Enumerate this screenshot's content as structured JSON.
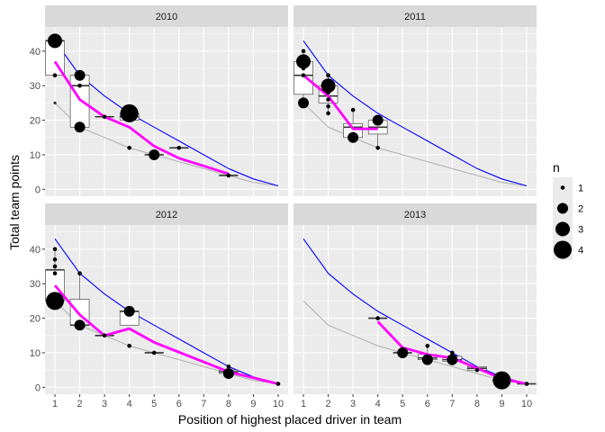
{
  "chart_data": {
    "type": "scatter",
    "xlabel": "Position of highest placed driver in team",
    "ylabel": "Total team points",
    "xlim": [
      0.6,
      10.4
    ],
    "ylim": [
      -2,
      47
    ],
    "x_ticks": [
      1,
      2,
      3,
      4,
      5,
      6,
      7,
      8,
      9,
      10
    ],
    "y_ticks": [
      0,
      10,
      20,
      30,
      40
    ],
    "legend": {
      "title": "n",
      "placement": "right",
      "entries": [
        {
          "label": "1",
          "n": 1
        },
        {
          "label": "2",
          "n": 2
        },
        {
          "label": "3",
          "n": 3
        },
        {
          "label": "4",
          "n": 4
        }
      ]
    },
    "colors": {
      "panel_bg": "#ebebeb",
      "grid": "#ffffff",
      "strip_bg": "#d9d9d9",
      "max_points_line": "#0000ff",
      "min_points_line": "#b3b3b3",
      "mean_line": "#ff00ff",
      "points": "#000000"
    },
    "max_points_line": [
      [
        1,
        43
      ],
      [
        2,
        33
      ],
      [
        3,
        27
      ],
      [
        4,
        22
      ],
      [
        5,
        18
      ],
      [
        6,
        14
      ],
      [
        7,
        10
      ],
      [
        8,
        6
      ],
      [
        9,
        3
      ],
      [
        10,
        1
      ]
    ],
    "min_points_line": [
      [
        1,
        25
      ],
      [
        2,
        18
      ],
      [
        3,
        15
      ],
      [
        4,
        12
      ],
      [
        5,
        10
      ],
      [
        6,
        8
      ],
      [
        7,
        6
      ],
      [
        8,
        4
      ],
      [
        9,
        2
      ],
      [
        10,
        1
      ]
    ],
    "panels": [
      {
        "label": "2010",
        "boxes": [
          {
            "x": 1,
            "lower": 33,
            "q1": 33,
            "median": 43,
            "q3": 43,
            "upper": 43
          },
          {
            "x": 2,
            "lower": 18,
            "q1": 18,
            "median": 30,
            "q3": 33,
            "upper": 33
          },
          {
            "x": 3,
            "lower": 21,
            "q1": 21,
            "median": 21,
            "q3": 21,
            "upper": 21
          },
          {
            "x": 4,
            "lower": 20,
            "q1": 20,
            "median": 21,
            "q3": 22,
            "upper": 22
          },
          {
            "x": 5,
            "lower": 10,
            "q1": 10,
            "median": 10,
            "q3": 10,
            "upper": 10
          },
          {
            "x": 6,
            "lower": 12,
            "q1": 12,
            "median": 12,
            "q3": 12,
            "upper": 12
          },
          {
            "x": 8,
            "lower": 4,
            "q1": 4,
            "median": 4,
            "q3": 4,
            "upper": 4
          }
        ],
        "outliers": [
          [
            1,
            25
          ],
          [
            4,
            12
          ]
        ],
        "points": [
          {
            "x": 1,
            "y": 43,
            "n": 3
          },
          {
            "x": 1,
            "y": 33,
            "n": 1
          },
          {
            "x": 2,
            "y": 33,
            "n": 2
          },
          {
            "x": 2,
            "y": 30,
            "n": 1
          },
          {
            "x": 2,
            "y": 18,
            "n": 2
          },
          {
            "x": 3,
            "y": 21,
            "n": 1
          },
          {
            "x": 4,
            "y": 22,
            "n": 4
          },
          {
            "x": 4,
            "y": 20,
            "n": 1
          },
          {
            "x": 4,
            "y": 12,
            "n": 1
          },
          {
            "x": 5,
            "y": 10,
            "n": 2
          },
          {
            "x": 6,
            "y": 12,
            "n": 1
          },
          {
            "x": 8,
            "y": 4,
            "n": 1
          }
        ],
        "mean_line": [
          [
            1,
            37
          ],
          [
            2,
            26
          ],
          [
            3,
            21
          ],
          [
            4,
            18
          ],
          [
            5,
            12.5
          ],
          [
            6,
            9
          ],
          [
            8,
            4.5
          ]
        ]
      },
      {
        "label": "2011",
        "boxes": [
          {
            "x": 1,
            "lower": 25,
            "q1": 27.5,
            "median": 33,
            "q3": 37,
            "upper": 40
          },
          {
            "x": 2,
            "lower": 22,
            "q1": 25,
            "median": 27,
            "q3": 30,
            "upper": 33
          },
          {
            "x": 3,
            "lower": 15,
            "q1": 15,
            "median": 18,
            "q3": 19,
            "upper": 23
          },
          {
            "x": 4,
            "lower": 12,
            "q1": 16,
            "median": 18,
            "q3": 20,
            "upper": 20
          }
        ],
        "outliers": [],
        "points": [
          {
            "x": 1,
            "y": 40,
            "n": 1
          },
          {
            "x": 1,
            "y": 37,
            "n": 3
          },
          {
            "x": 1,
            "y": 35,
            "n": 1
          },
          {
            "x": 1,
            "y": 33,
            "n": 1
          },
          {
            "x": 1,
            "y": 25,
            "n": 2
          },
          {
            "x": 2,
            "y": 33,
            "n": 1
          },
          {
            "x": 2,
            "y": 30,
            "n": 3
          },
          {
            "x": 2,
            "y": 28,
            "n": 1
          },
          {
            "x": 2,
            "y": 26,
            "n": 1
          },
          {
            "x": 2,
            "y": 24,
            "n": 1
          },
          {
            "x": 2,
            "y": 22,
            "n": 1
          },
          {
            "x": 3,
            "y": 23,
            "n": 1
          },
          {
            "x": 3,
            "y": 15,
            "n": 2
          },
          {
            "x": 4,
            "y": 20,
            "n": 2
          },
          {
            "x": 4,
            "y": 12,
            "n": 1
          }
        ],
        "mean_line": [
          [
            1,
            33
          ],
          [
            2,
            27
          ],
          [
            3,
            17.5
          ],
          [
            4,
            17.5
          ]
        ]
      },
      {
        "label": "2012",
        "boxes": [
          {
            "x": 1,
            "lower": 25,
            "q1": 25,
            "median": 34,
            "q3": 34,
            "upper": 40
          },
          {
            "x": 2,
            "lower": 18,
            "q1": 18,
            "median": 18,
            "q3": 25.5,
            "upper": 33
          },
          {
            "x": 3,
            "lower": 15,
            "q1": 15,
            "median": 15,
            "q3": 15,
            "upper": 15
          },
          {
            "x": 4,
            "lower": 18,
            "q1": 18,
            "median": 22,
            "q3": 22,
            "upper": 22
          },
          {
            "x": 5,
            "lower": 10,
            "q1": 10,
            "median": 10,
            "q3": 10,
            "upper": 10
          },
          {
            "x": 8,
            "lower": 4,
            "q1": 4,
            "median": 4.5,
            "q3": 5,
            "upper": 6
          }
        ],
        "outliers": [
          [
            4,
            12
          ]
        ],
        "points": [
          {
            "x": 1,
            "y": 40,
            "n": 1
          },
          {
            "x": 1,
            "y": 37,
            "n": 1
          },
          {
            "x": 1,
            "y": 35,
            "n": 1
          },
          {
            "x": 1,
            "y": 33,
            "n": 1
          },
          {
            "x": 1,
            "y": 25,
            "n": 4
          },
          {
            "x": 2,
            "y": 33,
            "n": 1
          },
          {
            "x": 2,
            "y": 18,
            "n": 2
          },
          {
            "x": 3,
            "y": 15,
            "n": 1
          },
          {
            "x": 4,
            "y": 22,
            "n": 2
          },
          {
            "x": 4,
            "y": 12,
            "n": 1
          },
          {
            "x": 5,
            "y": 10,
            "n": 1
          },
          {
            "x": 8,
            "y": 6,
            "n": 1
          },
          {
            "x": 8,
            "y": 4,
            "n": 2
          },
          {
            "x": 10,
            "y": 1,
            "n": 1
          }
        ],
        "mean_line": [
          [
            1,
            29.5
          ],
          [
            2,
            21
          ],
          [
            3,
            15
          ],
          [
            4,
            17
          ],
          [
            5,
            13
          ],
          [
            8,
            4.5
          ],
          [
            10,
            1
          ]
        ]
      },
      {
        "label": "2013",
        "boxes": [
          {
            "x": 4,
            "lower": 20,
            "q1": 20,
            "median": 20,
            "q3": 20,
            "upper": 20
          },
          {
            "x": 5,
            "lower": 10,
            "q1": 10,
            "median": 10,
            "q3": 10,
            "upper": 10
          },
          {
            "x": 6,
            "lower": 8,
            "q1": 8,
            "median": 8.5,
            "q3": 9.5,
            "upper": 12
          },
          {
            "x": 7,
            "lower": 7,
            "q1": 7.5,
            "median": 8,
            "q3": 9,
            "upper": 10
          },
          {
            "x": 8,
            "lower": 5,
            "q1": 5,
            "median": 5.5,
            "q3": 6,
            "upper": 6
          },
          {
            "x": 9,
            "lower": 2,
            "q1": 2,
            "median": 2,
            "q3": 2,
            "upper": 2
          },
          {
            "x": 10,
            "lower": 1,
            "q1": 1,
            "median": 1,
            "q3": 1,
            "upper": 1
          }
        ],
        "outliers": [],
        "points": [
          {
            "x": 4,
            "y": 20,
            "n": 1
          },
          {
            "x": 5,
            "y": 10,
            "n": 2
          },
          {
            "x": 6,
            "y": 12,
            "n": 1
          },
          {
            "x": 6,
            "y": 8,
            "n": 2
          },
          {
            "x": 7,
            "y": 10,
            "n": 1
          },
          {
            "x": 7,
            "y": 8,
            "n": 2
          },
          {
            "x": 7,
            "y": 7,
            "n": 1
          },
          {
            "x": 8,
            "y": 5,
            "n": 1
          },
          {
            "x": 9,
            "y": 2,
            "n": 4
          },
          {
            "x": 10,
            "y": 1,
            "n": 1
          }
        ],
        "mean_line": [
          [
            4,
            19
          ],
          [
            5,
            11.5
          ],
          [
            6,
            9.5
          ],
          [
            7,
            8.5
          ],
          [
            8,
            5.5
          ],
          [
            9,
            2.5
          ],
          [
            10,
            1
          ]
        ]
      }
    ]
  }
}
